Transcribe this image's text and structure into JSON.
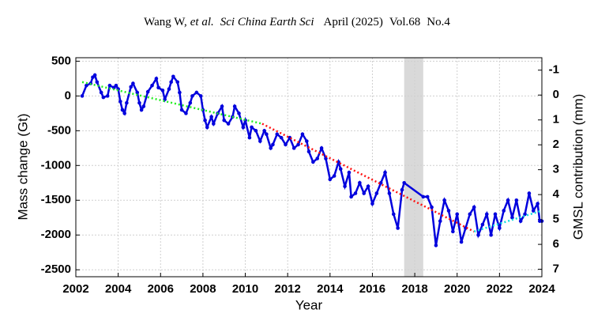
{
  "header": {
    "authors": "Wang W,",
    "etal": "et al.",
    "journal": "Sci China Earth Sci",
    "date": "April (2025)",
    "volume": "Vol.68",
    "number": "No.4"
  },
  "chart_data": {
    "type": "line",
    "xlabel": "Year",
    "ylabel": "Mass change (Gt)",
    "y2label": "GMSL contribution (mm)",
    "xlim": [
      2002,
      2024
    ],
    "xticks": [
      2002,
      2004,
      2006,
      2008,
      2010,
      2012,
      2014,
      2016,
      2018,
      2020,
      2022,
      2024
    ],
    "ylim": [
      -2600,
      550
    ],
    "yticks": [
      -2500,
      -2000,
      -1500,
      -1000,
      -500,
      0,
      500
    ],
    "y2lim": [
      7.3,
      -1.5
    ],
    "y2ticks": [
      -1,
      0,
      1,
      2,
      3,
      4,
      5,
      6,
      7
    ],
    "grid": true,
    "shaded_span": [
      2017.5,
      2018.4
    ],
    "series": [
      {
        "color": "#0000dd",
        "style": "solid",
        "markers": true,
        "x": [
          2002.3,
          2002.5,
          2002.7,
          2002.8,
          2002.9,
          2003.0,
          2003.2,
          2003.3,
          2003.5,
          2003.6,
          2003.8,
          2003.9,
          2004.0,
          2004.1,
          2004.2,
          2004.3,
          2004.4,
          2004.6,
          2004.7,
          2004.9,
          2005.0,
          2005.1,
          2005.2,
          2005.4,
          2005.6,
          2005.8,
          2005.9,
          2006.1,
          2006.2,
          2006.4,
          2006.5,
          2006.6,
          2006.8,
          2006.9,
          2007.0,
          2007.2,
          2007.4,
          2007.5,
          2007.7,
          2007.9,
          2008.0,
          2008.1,
          2008.2,
          2008.4,
          2008.5,
          2008.7,
          2008.9,
          2009.0,
          2009.2,
          2009.4,
          2009.5,
          2009.7,
          2009.9,
          2010.0,
          2010.2,
          2010.3,
          2010.5,
          2010.7,
          2010.9,
          2011.0,
          2011.2,
          2011.3,
          2011.5,
          2011.7,
          2011.9,
          2012.1,
          2012.3,
          2012.5,
          2012.7,
          2012.9,
          2013.0,
          2013.2,
          2013.4,
          2013.6,
          2013.8,
          2014.0,
          2014.2,
          2014.4,
          2014.5,
          2014.7,
          2014.9,
          2015.0,
          2015.2,
          2015.4,
          2015.6,
          2015.8,
          2016.0,
          2016.2,
          2016.4,
          2016.6,
          2016.8,
          2017.0,
          2017.2,
          2017.4,
          2017.5,
          2018.4,
          2018.6,
          2018.8,
          2019.0,
          2019.2,
          2019.4,
          2019.6,
          2019.8,
          2020.0,
          2020.2,
          2020.4,
          2020.6,
          2020.8,
          2021.0,
          2021.2,
          2021.4,
          2021.6,
          2021.8,
          2022.0,
          2022.2,
          2022.4,
          2022.6,
          2022.8,
          2023.0,
          2023.2,
          2023.4,
          2023.6,
          2023.8,
          2023.9,
          2024.0
        ],
        "values": [
          0,
          150,
          180,
          270,
          300,
          200,
          50,
          -20,
          0,
          150,
          120,
          150,
          100,
          -80,
          -200,
          -250,
          -100,
          130,
          180,
          50,
          -100,
          -200,
          -150,
          60,
          150,
          250,
          120,
          80,
          -50,
          100,
          200,
          280,
          200,
          50,
          -200,
          -250,
          -100,
          0,
          50,
          0,
          -200,
          -350,
          -450,
          -300,
          -400,
          -250,
          -150,
          -350,
          -400,
          -300,
          -150,
          -250,
          -450,
          -350,
          -600,
          -450,
          -500,
          -650,
          -500,
          -550,
          -750,
          -700,
          -550,
          -600,
          -700,
          -600,
          -750,
          -700,
          -550,
          -650,
          -800,
          -950,
          -900,
          -750,
          -900,
          -1200,
          -1150,
          -950,
          -1050,
          -1300,
          -1100,
          -1450,
          -1400,
          -1250,
          -1400,
          -1300,
          -1550,
          -1400,
          -1250,
          -1100,
          -1400,
          -1700,
          -1900,
          -1350,
          -1250,
          -1450,
          -1450,
          -1600,
          -2150,
          -1800,
          -1500,
          -1650,
          -1950,
          -1700,
          -2100,
          -1900,
          -1700,
          -1600,
          -2000,
          -1850,
          -1700,
          -2000,
          -1700,
          -1900,
          -1650,
          -1500,
          -1750,
          -1500,
          -1800,
          -1700,
          -1400,
          -1650,
          -1550,
          -1800,
          -1800
        ]
      },
      {
        "color": "#22ee22",
        "style": "dotted",
        "x": [
          2002.3,
          2010.8
        ],
        "values": [
          200,
          -400
        ]
      },
      {
        "color": "#ff1111",
        "style": "dotted",
        "x": [
          2010.8,
          2020.8
        ],
        "values": [
          -400,
          -1950
        ]
      },
      {
        "color": "#11dddd",
        "style": "dotted",
        "x": [
          2020.8,
          2024
        ],
        "values": [
          -1950,
          -1650
        ]
      }
    ]
  }
}
